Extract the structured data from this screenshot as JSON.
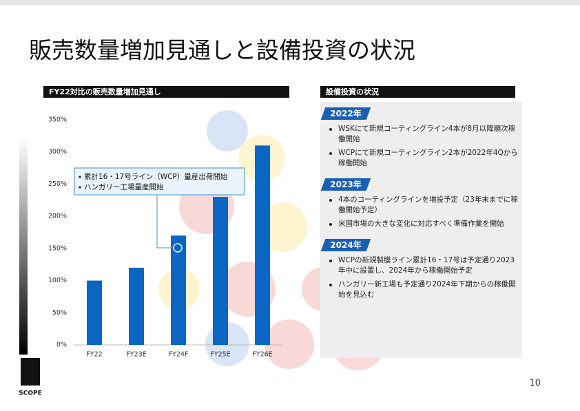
{
  "title": "販売数量増加見通しと設備投資の状況",
  "chart_data": {
    "type": "bar",
    "title": "FY22対比の販売数量増加見通し",
    "categories": [
      "FY22",
      "FY23E",
      "FY24F",
      "FY25E",
      "FY26E"
    ],
    "values": [
      100,
      120,
      170,
      230,
      310
    ],
    "color": "#0a66c2",
    "ylim": [
      0,
      350
    ],
    "yticks": [
      {
        "value": 0,
        "label": "0%"
      },
      {
        "value": 50,
        "label": "50%"
      },
      {
        "value": 100,
        "label": "100%"
      },
      {
        "value": 150,
        "label": "150%"
      },
      {
        "value": 200,
        "label": "200%"
      },
      {
        "value": 250,
        "label": "250%"
      },
      {
        "value": 300,
        "label": "300%"
      },
      {
        "value": 350,
        "label": "350%"
      }
    ],
    "annotation": [
      "累計16・17号ライン（WCP）量産出荷開始",
      "ハンガリー工場量産開始"
    ]
  },
  "panel": {
    "title": "設備投資の状況",
    "sections": [
      {
        "year": "2022年",
        "items": [
          "WSKにて新規コーティングライン4本が8月以降順次稼働開始",
          "WCPにて新規コーティングライン2本が2022年4Qから稼働開始"
        ]
      },
      {
        "year": "2023年",
        "items": [
          "4本のコーティングラインを増設予定（23年末までに稼働開始予定）",
          "米国市場の大きな変化に対応すべく準備作業を開始"
        ]
      },
      {
        "year": "2024年",
        "items": [
          "WCPの新規製膜ライン累計16・17号は予定通り2023年中に設置し、2024年から稼働開始予定",
          "ハンガリー新工場も予定通り2024年下期からの稼働開始を見込む"
        ]
      }
    ]
  },
  "logo": "SCOPE",
  "page_number": "10"
}
